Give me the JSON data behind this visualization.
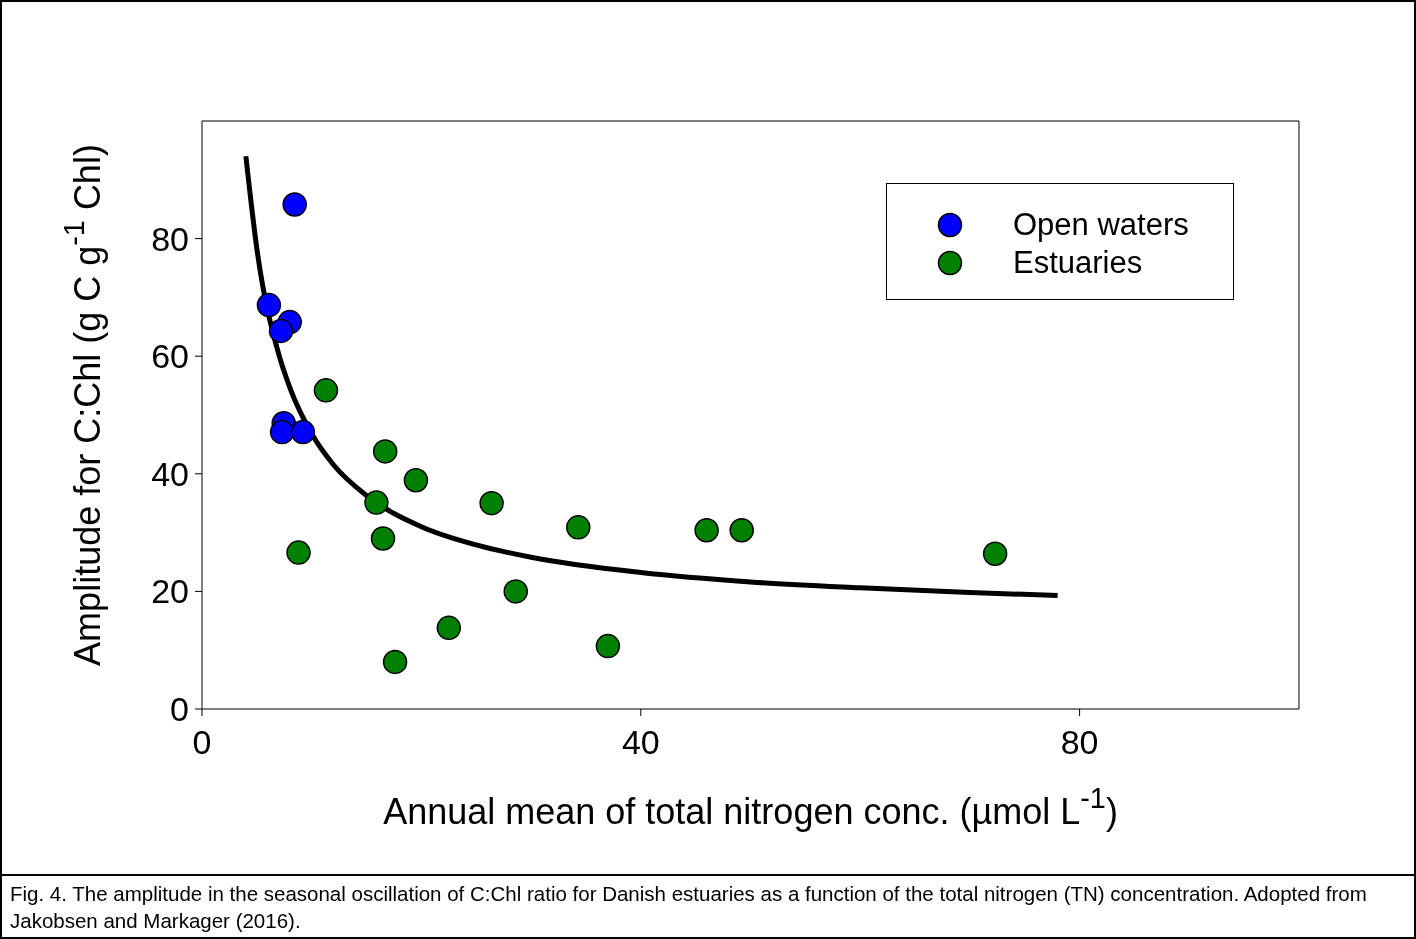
{
  "chart_data": {
    "type": "scatter",
    "xlabel": "Annual mean of total nitrogen conc. (µmol L$^{-1}$)",
    "ylabel": "Amplitude for C:Chl (g C g$^{-1}$ Chl)",
    "xlim": [
      0,
      100
    ],
    "ylim": [
      0,
      100
    ],
    "xticks": [
      0,
      40,
      80
    ],
    "yticks": [
      0,
      20,
      40,
      60,
      80
    ],
    "grid": false,
    "legend": "top right",
    "marker": "circle",
    "series": [
      {
        "name": "Open waters",
        "color": "#0000ff",
        "x": [
          8.45,
          6.1,
          8.0,
          7.2,
          7.45,
          7.3,
          9.2
        ],
        "values": [
          85.8,
          68.7,
          65.8,
          64.3,
          48.6,
          47.1,
          47.1
        ]
      },
      {
        "name": "Estuaries",
        "color": "#008000",
        "x": [
          11.3,
          16.7,
          19.5,
          15.9,
          26.4,
          16.5,
          8.8,
          34.3,
          46.0,
          49.2,
          72.3,
          28.6,
          22.5,
          17.6,
          37.0
        ],
        "values": [
          54.2,
          43.8,
          38.9,
          35.1,
          35.0,
          29.0,
          26.6,
          30.9,
          30.4,
          30.4,
          26.4,
          20.0,
          13.8,
          8.0,
          10.7
        ]
      },
      {
        "type": "line",
        "color": "#000000",
        "marker": "none",
        "line_style": "solid",
        "x": [
          4,
          5,
          7,
          8,
          10,
          12,
          15,
          20,
          25,
          30,
          40,
          50,
          60,
          70,
          78
        ],
        "values": [
          94.0,
          78.3,
          60.3,
          54.7,
          46.8,
          41.5,
          36.3,
          31.0,
          27.9,
          25.8,
          23.2,
          21.6,
          20.6,
          19.8,
          19.3
        ]
      }
    ],
    "annotations": [
      "Fig. 4. The amplitude in the seasonal oscillation of C:Chl ratio for Danish estuaries as a function of the total nitrogen (TN) concentration. Adopted from Jakobsen and Markager (2016)."
    ]
  }
}
